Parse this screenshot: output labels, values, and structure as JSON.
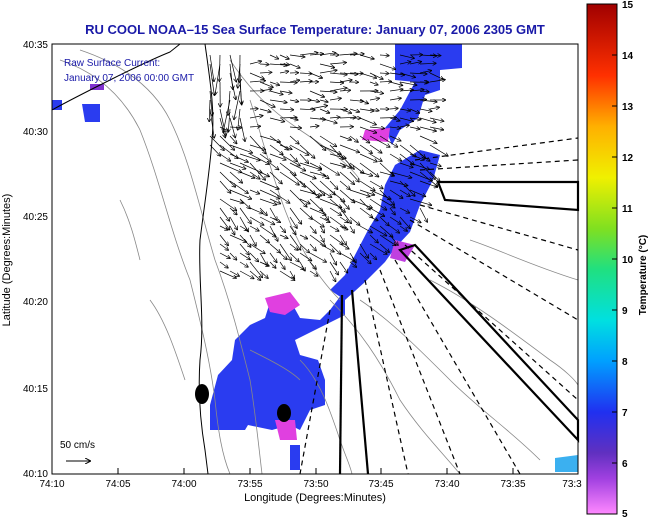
{
  "title": "RU COOL  NOAA–15  Sea Surface Temperature:  January 07, 2006 2305 GMT",
  "annotation": {
    "line1": "Raw Surface Current:",
    "line2": "January 07, 2006 00:00 GMT"
  },
  "scale_label": "50 cm/s",
  "axes": {
    "xlabel": "Longitude (Degrees:Minutes)",
    "ylabel": "Latitude (Degrees:Minutes)",
    "xticks": [
      "74:10",
      "74:05",
      "74:00",
      "73:55",
      "73:50",
      "73:45",
      "73:40",
      "73:35",
      "73:3"
    ],
    "yticks": [
      "40:35",
      "40:30",
      "40:25",
      "40:20",
      "40:15",
      "40:10"
    ]
  },
  "colorbar": {
    "label": "Temperature (°C)",
    "ticks": [
      "15",
      "14",
      "13",
      "12",
      "11",
      "10",
      "9",
      "8",
      "7",
      "6",
      "5"
    ],
    "range": [
      5,
      15
    ]
  },
  "colors": {
    "title": "#1a1aa8",
    "sst_blue": "#2a3cf0",
    "sst_magenta": "#e040e0",
    "land": "#ffffff"
  }
}
